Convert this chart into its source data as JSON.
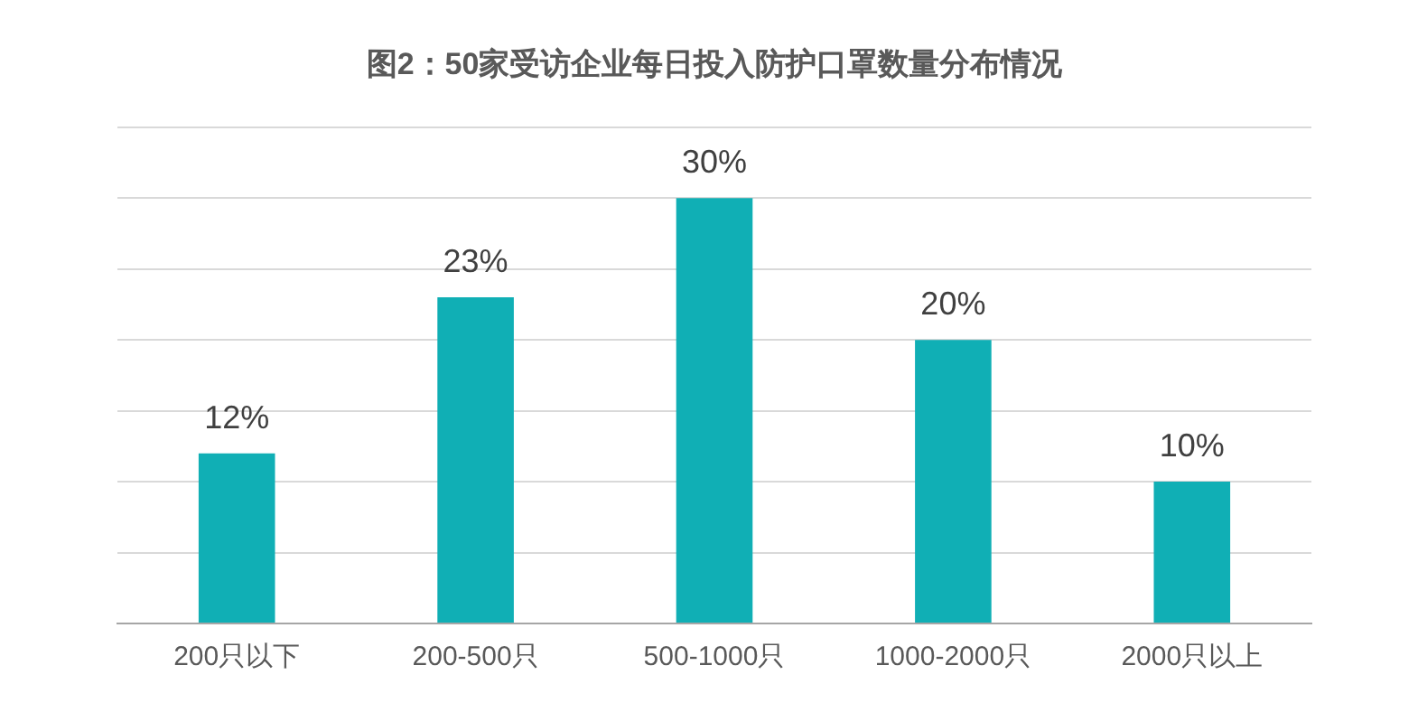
{
  "chart_data": {
    "type": "bar",
    "title": "图2：50家受访企业每日投入防护口罩数量分布情况",
    "categories": [
      "200只以下",
      "200-500只",
      "500-1000只",
      "1000-2000只",
      "2000只以上"
    ],
    "values": [
      12,
      23,
      30,
      20,
      10
    ],
    "value_labels": [
      "12%",
      "23%",
      "30%",
      "20%",
      "10%"
    ],
    "color": "#10afb5",
    "ylim": [
      0,
      35
    ],
    "yticks": [
      {
        "value": 0,
        "label": null
      },
      {
        "value": 5,
        "label": null
      },
      {
        "value": 10,
        "label": null
      },
      {
        "value": 15,
        "label": null
      },
      {
        "value": 20,
        "label": null
      },
      {
        "value": 25,
        "label": null
      },
      {
        "value": 30,
        "label": null
      },
      {
        "value": 35,
        "label": null
      }
    ],
    "grid": "y",
    "tick_labels": "x",
    "legend": false
  }
}
